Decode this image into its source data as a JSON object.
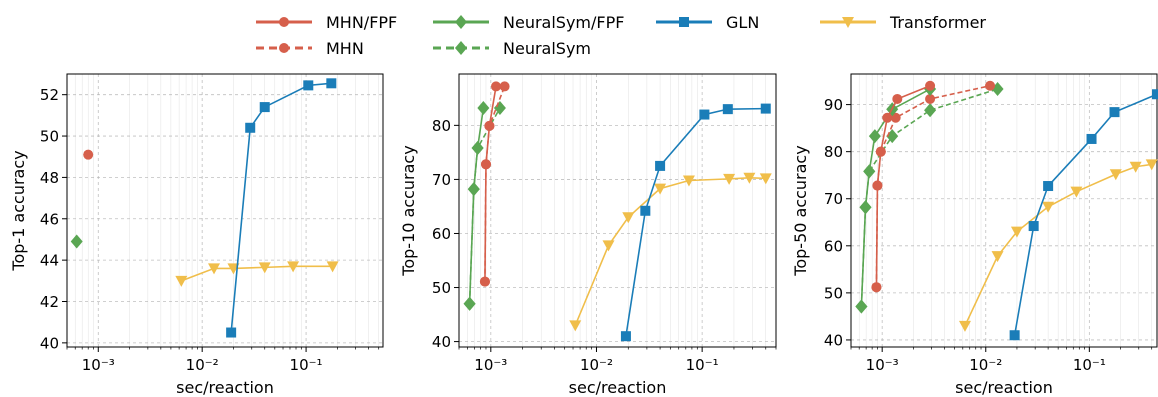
{
  "colors": {
    "mhn": "#d65f4b",
    "neuralsym": "#5aa653",
    "gln": "#1a7db8",
    "transformer": "#f0be4a"
  },
  "legend": [
    {
      "key": "mhn_fpf",
      "label": "MHN/FPF",
      "color": "#d65f4b",
      "marker": "circle",
      "dash": false
    },
    {
      "key": "mhn",
      "label": "MHN",
      "color": "#d65f4b",
      "marker": "circle",
      "dash": true
    },
    {
      "key": "neuralsym_fpf",
      "label": "NeuralSym/FPF",
      "color": "#5aa653",
      "marker": "diamond",
      "dash": false
    },
    {
      "key": "neuralsym",
      "label": "NeuralSym",
      "color": "#5aa653",
      "marker": "diamond",
      "dash": true
    },
    {
      "key": "gln",
      "label": "GLN",
      "color": "#1a7db8",
      "marker": "square",
      "dash": false
    },
    {
      "key": "transformer",
      "label": "Transformer",
      "color": "#f0be4a",
      "marker": "triangle-down",
      "dash": false
    }
  ],
  "chart_data": [
    {
      "type": "line",
      "xscale": "log",
      "xlabel": "sec/reaction",
      "ylabel": "Top-1 accuracy",
      "xlim": [
        0.0005,
        0.55
      ],
      "ylim": [
        39.8,
        53.0
      ],
      "xticks": [
        {
          "value": 0.001,
          "label": "10⁻³"
        },
        {
          "value": 0.01,
          "label": "10⁻²"
        },
        {
          "value": 0.1,
          "label": "10⁻¹"
        }
      ],
      "yticks": [
        40,
        42,
        44,
        46,
        48,
        50,
        52
      ],
      "grid": true,
      "series": [
        {
          "key": "mhn_fpf",
          "points": [
            {
              "x": 0.0008,
              "y": 49.1
            }
          ]
        },
        {
          "key": "neuralsym_fpf",
          "points": [
            {
              "x": 0.00062,
              "y": 44.9
            }
          ]
        },
        {
          "key": "gln",
          "points": [
            {
              "x": 0.019,
              "y": 40.5
            },
            {
              "x": 0.029,
              "y": 50.4
            },
            {
              "x": 0.04,
              "y": 51.4
            },
            {
              "x": 0.105,
              "y": 52.45
            },
            {
              "x": 0.175,
              "y": 52.55
            }
          ]
        },
        {
          "key": "transformer",
          "points": [
            {
              "x": 0.0063,
              "y": 43.0
            },
            {
              "x": 0.013,
              "y": 43.6
            },
            {
              "x": 0.02,
              "y": 43.6
            },
            {
              "x": 0.04,
              "y": 43.65
            },
            {
              "x": 0.075,
              "y": 43.7
            },
            {
              "x": 0.18,
              "y": 43.7
            }
          ]
        }
      ]
    },
    {
      "type": "line",
      "xscale": "log",
      "xlabel": "sec/reaction",
      "ylabel": "Top-10 accuracy",
      "xlim": [
        0.0005,
        0.5
      ],
      "ylim": [
        39.0,
        89.5
      ],
      "xticks": [
        {
          "value": 0.001,
          "label": "10⁻³"
        },
        {
          "value": 0.01,
          "label": "10⁻²"
        },
        {
          "value": 0.1,
          "label": "10⁻¹"
        }
      ],
      "yticks": [
        40,
        50,
        60,
        70,
        80
      ],
      "grid": true,
      "series": [
        {
          "key": "mhn_fpf",
          "points": [
            {
              "x": 0.00088,
              "y": 51.1
            },
            {
              "x": 0.0009,
              "y": 72.8
            },
            {
              "x": 0.00097,
              "y": 79.9
            },
            {
              "x": 0.00112,
              "y": 87.2
            }
          ]
        },
        {
          "key": "mhn",
          "points": [
            {
              "x": 0.00088,
              "y": 51.1
            },
            {
              "x": 0.0009,
              "y": 72.8
            },
            {
              "x": 0.00097,
              "y": 79.9
            },
            {
              "x": 0.00135,
              "y": 87.2
            }
          ]
        },
        {
          "key": "neuralsym_fpf",
          "points": [
            {
              "x": 0.00063,
              "y": 47.0
            },
            {
              "x": 0.00069,
              "y": 68.2
            },
            {
              "x": 0.00075,
              "y": 75.8
            },
            {
              "x": 0.00085,
              "y": 83.2
            }
          ]
        },
        {
          "key": "neuralsym",
          "points": [
            {
              "x": 0.00063,
              "y": 47.0
            },
            {
              "x": 0.00069,
              "y": 68.2
            },
            {
              "x": 0.00075,
              "y": 75.8
            },
            {
              "x": 0.00122,
              "y": 83.2
            }
          ]
        },
        {
          "key": "gln",
          "points": [
            {
              "x": 0.019,
              "y": 41.0
            },
            {
              "x": 0.029,
              "y": 64.2
            },
            {
              "x": 0.04,
              "y": 72.5
            },
            {
              "x": 0.105,
              "y": 82.0
            },
            {
              "x": 0.175,
              "y": 83.0
            },
            {
              "x": 0.4,
              "y": 83.1
            }
          ]
        },
        {
          "key": "transformer",
          "points": [
            {
              "x": 0.0063,
              "y": 43.0
            },
            {
              "x": 0.013,
              "y": 57.8
            },
            {
              "x": 0.02,
              "y": 63.0
            },
            {
              "x": 0.04,
              "y": 68.3
            },
            {
              "x": 0.075,
              "y": 69.8
            },
            {
              "x": 0.18,
              "y": 70.1
            },
            {
              "x": 0.28,
              "y": 70.3
            },
            {
              "x": 0.4,
              "y": 70.2
            }
          ]
        }
      ]
    },
    {
      "type": "line",
      "xscale": "log",
      "xlabel": "sec/reaction",
      "ylabel": "Top-50 accuracy",
      "xlim": [
        0.0005,
        0.45
      ],
      "ylim": [
        38.5,
        96.5
      ],
      "xticks": [
        {
          "value": 0.001,
          "label": "10⁻³"
        },
        {
          "value": 0.01,
          "label": "10⁻²"
        },
        {
          "value": 0.1,
          "label": "10⁻¹"
        }
      ],
      "yticks": [
        40,
        50,
        60,
        70,
        80,
        90
      ],
      "grid": true,
      "series": [
        {
          "key": "mhn_fpf",
          "points": [
            {
              "x": 0.00088,
              "y": 51.2
            },
            {
              "x": 0.0009,
              "y": 72.8
            },
            {
              "x": 0.00097,
              "y": 80.0
            },
            {
              "x": 0.00112,
              "y": 87.2
            },
            {
              "x": 0.0014,
              "y": 91.2
            },
            {
              "x": 0.0029,
              "y": 94.0
            }
          ]
        },
        {
          "key": "mhn",
          "points": [
            {
              "x": 0.00088,
              "y": 51.2
            },
            {
              "x": 0.0009,
              "y": 72.8
            },
            {
              "x": 0.00097,
              "y": 80.0
            },
            {
              "x": 0.00135,
              "y": 87.2
            },
            {
              "x": 0.0029,
              "y": 91.2
            },
            {
              "x": 0.011,
              "y": 94.0
            }
          ]
        },
        {
          "key": "neuralsym_fpf",
          "points": [
            {
              "x": 0.00063,
              "y": 47.1
            },
            {
              "x": 0.00069,
              "y": 68.2
            },
            {
              "x": 0.00075,
              "y": 75.8
            },
            {
              "x": 0.00085,
              "y": 83.3
            },
            {
              "x": 0.00125,
              "y": 89.0
            },
            {
              "x": 0.0029,
              "y": 93.3
            }
          ]
        },
        {
          "key": "neuralsym",
          "points": [
            {
              "x": 0.00063,
              "y": 47.1
            },
            {
              "x": 0.00069,
              "y": 68.2
            },
            {
              "x": 0.00075,
              "y": 75.8
            },
            {
              "x": 0.00125,
              "y": 83.3
            },
            {
              "x": 0.0029,
              "y": 88.8
            },
            {
              "x": 0.013,
              "y": 93.3
            }
          ]
        },
        {
          "key": "gln",
          "points": [
            {
              "x": 0.019,
              "y": 41.0
            },
            {
              "x": 0.029,
              "y": 64.2
            },
            {
              "x": 0.04,
              "y": 72.7
            },
            {
              "x": 0.105,
              "y": 82.7
            },
            {
              "x": 0.175,
              "y": 88.4
            },
            {
              "x": 0.45,
              "y": 92.2
            }
          ]
        },
        {
          "key": "transformer",
          "points": [
            {
              "x": 0.0063,
              "y": 43.0
            },
            {
              "x": 0.013,
              "y": 57.8
            },
            {
              "x": 0.02,
              "y": 63.0
            },
            {
              "x": 0.04,
              "y": 68.3
            },
            {
              "x": 0.075,
              "y": 71.5
            },
            {
              "x": 0.18,
              "y": 75.2
            },
            {
              "x": 0.28,
              "y": 76.8
            },
            {
              "x": 0.4,
              "y": 77.3
            }
          ]
        }
      ]
    }
  ]
}
